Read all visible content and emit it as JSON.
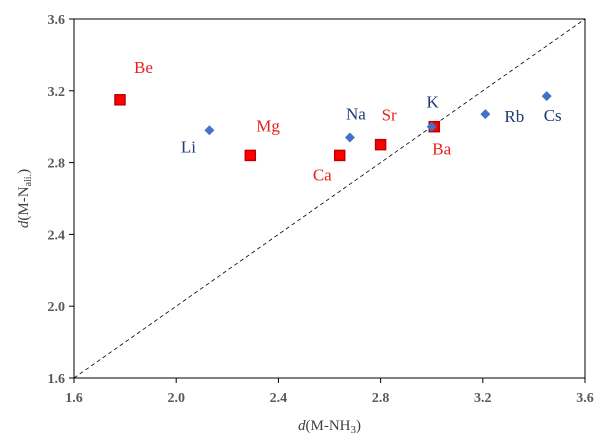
{
  "chart_data": {
    "type": "scatter",
    "xlim": [
      1.6,
      3.6
    ],
    "ylim": [
      1.6,
      3.6
    ],
    "x_ticks": [
      "1.6",
      "2.0",
      "2.4",
      "2.8",
      "3.2",
      "3.6"
    ],
    "y_ticks": [
      "1.6",
      "2.0",
      "2.4",
      "2.8",
      "3.2",
      "3.6"
    ],
    "xlabel": {
      "italic": "d",
      "pre": "(M-NH",
      "sub": "3",
      "post": ")"
    },
    "ylabel": {
      "italic": "d",
      "pre": "(M-N",
      "sub": "ali.",
      "post": ")"
    },
    "grid": false,
    "diagonal_reference_line": true,
    "series": [
      {
        "marker": "square",
        "color": "#ff0000",
        "edge_color": "#c00000",
        "label_color": "#e8201a",
        "points": [
          {
            "label": "Be",
            "x": 1.78,
            "y": 3.15
          },
          {
            "label": "Mg",
            "x": 2.29,
            "y": 2.84
          },
          {
            "label": "Ca",
            "x": 2.64,
            "y": 2.84
          },
          {
            "label": "Sr",
            "x": 2.8,
            "y": 2.9
          },
          {
            "label": "Ba",
            "x": 3.01,
            "y": 3.0
          }
        ]
      },
      {
        "marker": "diamond",
        "color": "#4472c4",
        "label_color": "#1f3b73",
        "points": [
          {
            "label": "Li",
            "x": 2.13,
            "y": 2.98
          },
          {
            "label": "Na",
            "x": 2.68,
            "y": 2.94
          },
          {
            "label": "K",
            "x": 3.0,
            "y": 3.0
          },
          {
            "label": "Rb",
            "x": 3.21,
            "y": 3.07
          },
          {
            "label": "Cs",
            "x": 3.45,
            "y": 3.17
          }
        ]
      }
    ]
  }
}
